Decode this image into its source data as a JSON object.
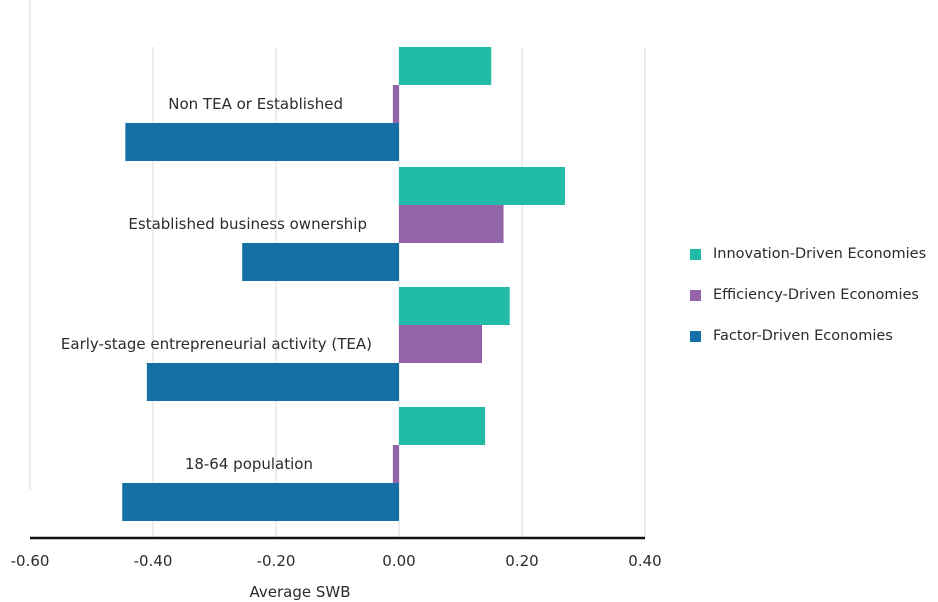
{
  "chart_data": {
    "type": "bar",
    "orientation": "horizontal",
    "categories": [
      "Non TEA or Established",
      "Established business ownership",
      "Early-stage entrepreneurial activity (TEA)",
      "18-64 population"
    ],
    "series": [
      {
        "name": "Innovation-Driven Economies",
        "color": "#22bba8",
        "values": [
          0.15,
          0.27,
          0.18,
          0.14
        ]
      },
      {
        "name": "Efficiency-Driven Economies",
        "color": "#9464a8",
        "values": [
          -0.01,
          0.17,
          0.135,
          -0.01
        ]
      },
      {
        "name": "Factor-Driven Economies",
        "color": "#1570a6",
        "values": [
          -0.445,
          -0.255,
          -0.41,
          -0.45
        ]
      }
    ],
    "xlabel": "Average SWB",
    "xlim": [
      -0.6,
      0.4
    ],
    "xticks": [
      "-0.60",
      "-0.40",
      "-0.20",
      "0.00",
      "0.20",
      "0.40"
    ],
    "grid": true,
    "legend_position": "right"
  }
}
